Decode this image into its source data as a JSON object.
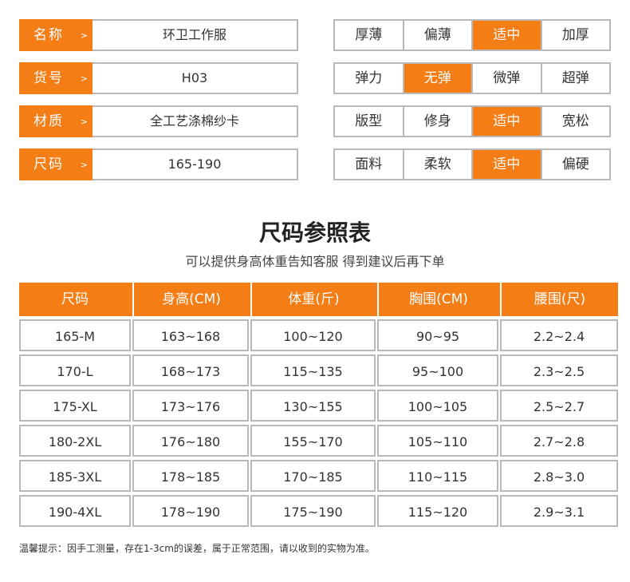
{
  "attributes": [
    {
      "label": "名称",
      "arrow": ">",
      "value": "环卫工作服"
    },
    {
      "label": "货号",
      "arrow": ">",
      "value": "H03"
    },
    {
      "label": "材质",
      "arrow": ">",
      "value": "全工艺涤棉纱卡"
    },
    {
      "label": "尺码",
      "arrow": ">",
      "value": "165-190"
    }
  ],
  "options": [
    {
      "cells": [
        "厚薄",
        "偏薄",
        "适中",
        "加厚"
      ],
      "selected": 2
    },
    {
      "cells": [
        "弹力",
        "无弹",
        "微弹",
        "超弹"
      ],
      "selected": 1
    },
    {
      "cells": [
        "版型",
        "修身",
        "适中",
        "宽松"
      ],
      "selected": 2
    },
    {
      "cells": [
        "面料",
        "柔软",
        "适中",
        "偏硬"
      ],
      "selected": 2
    }
  ],
  "size_chart": {
    "title": "尺码参照表",
    "subtitle": "可以提供身高体重告知客服 得到建议后再下单",
    "headers": [
      "尺码",
      "身高(CM)",
      "体重(斤)",
      "胸围(CM)",
      "腰围(尺)"
    ],
    "rows": [
      [
        "165-M",
        "163~168",
        "100~120",
        "90~95",
        "2.2~2.4"
      ],
      [
        "170-L",
        "168~173",
        "115~135",
        "95~100",
        "2.3~2.5"
      ],
      [
        "175-XL",
        "173~176",
        "130~155",
        "100~105",
        "2.5~2.7"
      ],
      [
        "180-2XL",
        "176~180",
        "155~170",
        "105~110",
        "2.7~2.8"
      ],
      [
        "185-3XL",
        "178~185",
        "170~185",
        "110~115",
        "2.8~3.0"
      ],
      [
        "190-4XL",
        "178~190",
        "175~190",
        "115~120",
        "2.9~3.1"
      ]
    ]
  },
  "note": "温馨提示：因手工测量，存在1-3cm的误差，属于正常范围，请以收到的实物为准。",
  "colors": {
    "accent": "#f57d16",
    "border": "#b9b9b9"
  }
}
